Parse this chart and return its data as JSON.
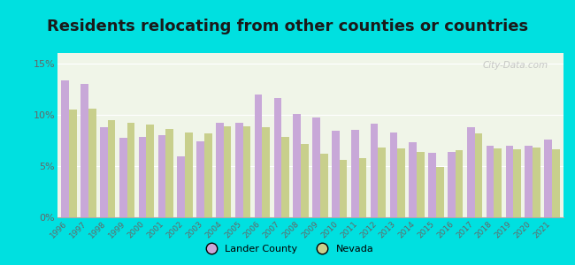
{
  "title": "Residents relocating from other counties or countries",
  "years": [
    1996,
    1997,
    1998,
    1999,
    2000,
    2001,
    2002,
    2003,
    2004,
    2005,
    2006,
    2007,
    2008,
    2009,
    2010,
    2011,
    2012,
    2013,
    2014,
    2015,
    2016,
    2017,
    2018,
    2019,
    2020,
    2021
  ],
  "lander_county": [
    13.3,
    13.0,
    8.8,
    7.7,
    7.8,
    8.0,
    5.9,
    7.4,
    9.2,
    9.2,
    12.0,
    11.6,
    10.1,
    9.7,
    8.4,
    8.5,
    9.1,
    8.3,
    7.3,
    6.3,
    6.4,
    8.8,
    7.0,
    7.0,
    7.0,
    7.6
  ],
  "nevada": [
    10.5,
    10.6,
    9.5,
    9.2,
    9.0,
    8.6,
    8.3,
    8.2,
    8.9,
    8.9,
    8.8,
    7.8,
    7.1,
    6.2,
    5.6,
    5.8,
    6.8,
    6.7,
    6.4,
    4.9,
    6.5,
    8.2,
    6.7,
    6.6,
    6.8,
    6.6
  ],
  "lander_color": "#c8a8d8",
  "nevada_color": "#c8cf8c",
  "bg_outer": "#00e0e0",
  "bg_chart": "#f0f5e8",
  "ylabel_ticks": [
    "0%",
    "5%",
    "10%",
    "15%"
  ],
  "ytick_vals": [
    0,
    5,
    10,
    15
  ],
  "ylim": [
    0,
    16
  ],
  "title_fontsize": 13,
  "watermark": "City-Data.com",
  "legend_lander": "Lander County",
  "legend_nevada": "Nevada"
}
